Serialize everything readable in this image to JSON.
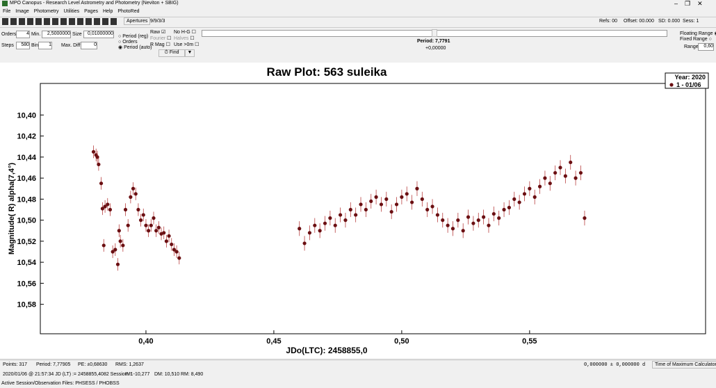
{
  "window": {
    "title": "MPO Canopus - Research Level Astrometry and Photometry (Neviton + SBIG)"
  },
  "menu": [
    "File",
    "Image",
    "Photometry",
    "Utilities",
    "Pages",
    "Help",
    "PhotoRed"
  ],
  "toolbar": {
    "apertures": "Apertures",
    "aperture_sizes": "9/9/3/3",
    "refs": "Refs: 00",
    "offset": "Offset: 00.000",
    "sd": "SD: 0.000",
    "sess": "Sess: 1"
  },
  "controls": {
    "orders_label": "Orders",
    "orders": "4",
    "min_label": "Min.",
    "min": "2,5000000",
    "size_label": "Size",
    "size": "0,01000000",
    "steps_label": "Steps",
    "steps": "580",
    "bin_label": "Bin",
    "bin": "1",
    "maxdiff_label": "Max. Diff",
    "maxdiff": "0",
    "radio": [
      "Period (reg)",
      "Orders",
      "Period (auto)"
    ],
    "checks": [
      "Raw",
      "No H-G",
      "Fourier",
      "Halves",
      "R Mag",
      "Use >0m"
    ],
    "find": "Find",
    "period": "Period: 7,7791",
    "period_offset": "+0,00000",
    "floating": "Floating Range",
    "fixed": "Fixed Range",
    "range_label": "Range",
    "range": "0,60"
  },
  "chart_data": {
    "type": "scatter",
    "title": "Raw Plot: 563 suleika",
    "x_label": "JDo(LTC): 2458855,0",
    "y_label": "Magnitude( R) alpha(7,4°)",
    "xlim": [
      0.3587,
      0.6188
    ],
    "ylim": [
      10.37,
      10.608
    ],
    "y_inverted": true,
    "xticks": [
      {
        "value": 0.4,
        "label": "0,40"
      },
      {
        "value": 0.45,
        "label": "0,45"
      },
      {
        "value": 0.5,
        "label": "0,50"
      },
      {
        "value": 0.55,
        "label": "0,55"
      }
    ],
    "yticks": [
      {
        "value": 10.4,
        "label": "10,40"
      },
      {
        "value": 10.42,
        "label": "10,42"
      },
      {
        "value": 10.44,
        "label": "10,44"
      },
      {
        "value": 10.46,
        "label": "10,46"
      },
      {
        "value": 10.48,
        "label": "10,48"
      },
      {
        "value": 10.5,
        "label": "10,50"
      },
      {
        "value": 10.52,
        "label": "10,52"
      },
      {
        "value": 10.54,
        "label": "10,54"
      },
      {
        "value": 10.56,
        "label": "10,56"
      },
      {
        "value": 10.58,
        "label": "10,58"
      }
    ],
    "legend_title": "Year: 2020",
    "legend_position": "top-right",
    "series": [
      {
        "name": "1 - 01/06",
        "color": "#6b0f12",
        "x": [
          0.3795,
          0.3805,
          0.381,
          0.3815,
          0.3825,
          0.383,
          0.3835,
          0.384,
          0.385,
          0.386,
          0.387,
          0.388,
          0.389,
          0.3895,
          0.39,
          0.391,
          0.392,
          0.393,
          0.394,
          0.395,
          0.396,
          0.397,
          0.398,
          0.399,
          0.4,
          0.401,
          0.402,
          0.403,
          0.404,
          0.405,
          0.406,
          0.407,
          0.408,
          0.409,
          0.41,
          0.411,
          0.412,
          0.413,
          0.46,
          0.462,
          0.464,
          0.466,
          0.468,
          0.47,
          0.472,
          0.474,
          0.476,
          0.478,
          0.48,
          0.482,
          0.484,
          0.486,
          0.488,
          0.49,
          0.492,
          0.494,
          0.496,
          0.498,
          0.5,
          0.502,
          0.504,
          0.506,
          0.508,
          0.51,
          0.512,
          0.514,
          0.516,
          0.518,
          0.52,
          0.522,
          0.524,
          0.526,
          0.528,
          0.53,
          0.532,
          0.534,
          0.536,
          0.538,
          0.54,
          0.542,
          0.544,
          0.546,
          0.548,
          0.55,
          0.552,
          0.554,
          0.556,
          0.558,
          0.56,
          0.562,
          0.564,
          0.566,
          0.568,
          0.57,
          0.5715
        ],
        "values": [
          10.435,
          10.438,
          10.44,
          10.447,
          10.465,
          10.489,
          10.524,
          10.487,
          10.485,
          10.49,
          10.53,
          10.528,
          10.542,
          10.51,
          10.52,
          10.524,
          10.49,
          10.505,
          10.478,
          10.47,
          10.475,
          10.49,
          10.5,
          10.495,
          10.505,
          10.51,
          10.505,
          10.498,
          10.51,
          10.507,
          10.513,
          10.512,
          10.52,
          10.515,
          10.523,
          10.528,
          10.53,
          10.536,
          10.508,
          10.522,
          10.512,
          10.505,
          10.51,
          10.503,
          10.498,
          10.505,
          10.495,
          10.5,
          10.49,
          10.495,
          10.485,
          10.49,
          10.482,
          10.478,
          10.485,
          10.48,
          10.492,
          10.485,
          10.478,
          10.475,
          10.483,
          10.47,
          10.48,
          10.49,
          10.487,
          10.495,
          10.5,
          10.505,
          10.508,
          10.5,
          10.51,
          10.497,
          10.503,
          10.5,
          10.497,
          10.505,
          10.494,
          10.498,
          10.49,
          10.488,
          10.48,
          10.483,
          10.475,
          10.47,
          10.478,
          10.468,
          10.46,
          10.465,
          10.455,
          10.45,
          10.458,
          10.445,
          10.46,
          10.455,
          10.498
        ],
        "errors": [
          0.006,
          0.006,
          0.006,
          0.006,
          0.006,
          0.006,
          0.006,
          0.006,
          0.006,
          0.006,
          0.006,
          0.006,
          0.006,
          0.006,
          0.006,
          0.006,
          0.006,
          0.006,
          0.006,
          0.006,
          0.006,
          0.006,
          0.006,
          0.006,
          0.006,
          0.006,
          0.006,
          0.006,
          0.006,
          0.006,
          0.006,
          0.006,
          0.006,
          0.006,
          0.006,
          0.006,
          0.006,
          0.006,
          0.007,
          0.007,
          0.007,
          0.007,
          0.007,
          0.007,
          0.007,
          0.007,
          0.007,
          0.007,
          0.007,
          0.007,
          0.007,
          0.007,
          0.007,
          0.007,
          0.007,
          0.007,
          0.007,
          0.007,
          0.007,
          0.007,
          0.007,
          0.007,
          0.007,
          0.007,
          0.007,
          0.007,
          0.007,
          0.007,
          0.007,
          0.007,
          0.007,
          0.007,
          0.007,
          0.007,
          0.007,
          0.007,
          0.007,
          0.007,
          0.007,
          0.007,
          0.007,
          0.007,
          0.007,
          0.007,
          0.007,
          0.007,
          0.007,
          0.007,
          0.007,
          0.007,
          0.007,
          0.007,
          0.007,
          0.007,
          0.007
        ]
      }
    ]
  },
  "status": {
    "points": "Points: 317",
    "period": "Period: 7,77905",
    "pe": "PE: ±0,68630",
    "rms": "RMS: 1,2637",
    "tmax": "0,000000 ± 0,000000 d",
    "tmax_button": "Time of Maximum Calculator",
    "datetime": "2020/01/06 @ 21:57:34 JD (LT) := 2458855,4082   Session: 1",
    "im": "IM: -10,277",
    "dm": "DM: 10,510",
    "rm": "RM: 8,490",
    "files": "Active Session/Observation Files: PHSESS / PHOBSS"
  }
}
